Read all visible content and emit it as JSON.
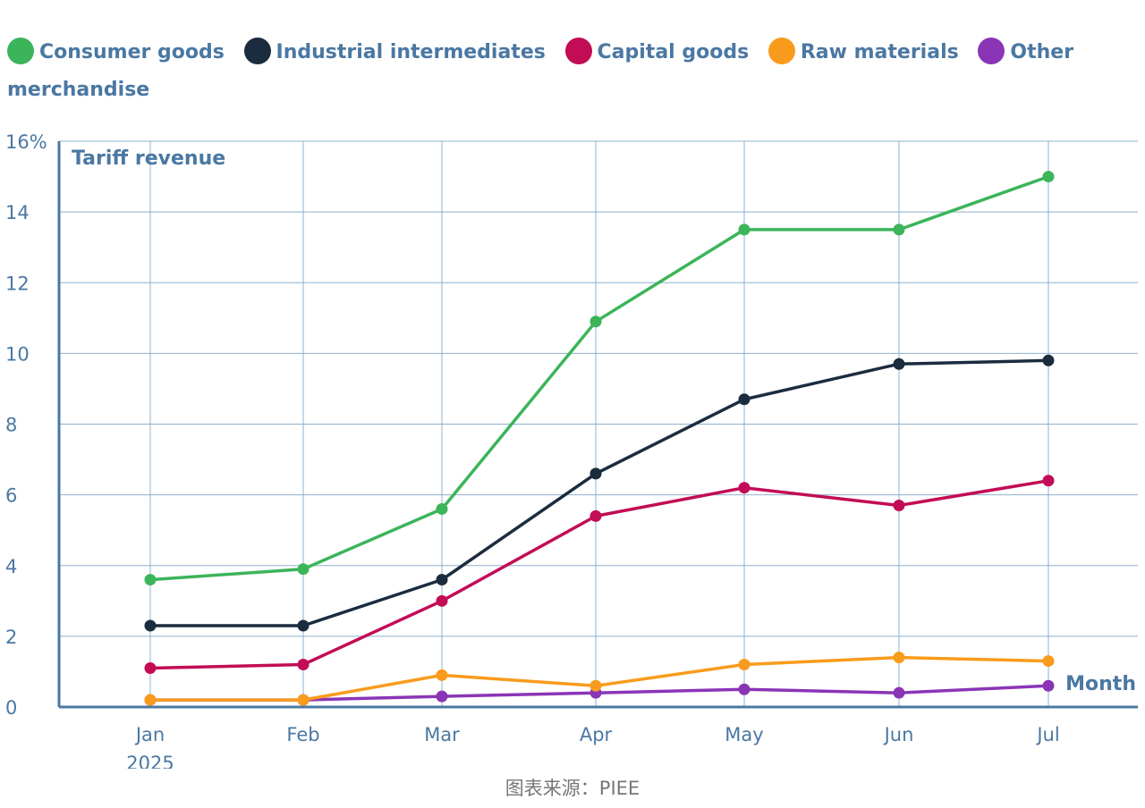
{
  "chart_data": {
    "type": "line",
    "ylabel": "Tariff revenue",
    "xlabel": "Month",
    "ylim": [
      0,
      16
    ],
    "yticks": [
      "0",
      "2",
      "4",
      "6",
      "8",
      "10",
      "12",
      "14",
      "16%"
    ],
    "ytick_values": [
      0,
      2,
      4,
      6,
      8,
      10,
      12,
      14,
      16
    ],
    "categories": [
      "Jan",
      "Feb",
      "Mar",
      "Apr",
      "May",
      "Jun",
      "Jul"
    ],
    "year_label": "2025",
    "grid": true,
    "legend_position": "top",
    "series": [
      {
        "name": "Consumer goods",
        "color": "#3cb55a",
        "values": [
          3.6,
          3.9,
          5.6,
          10.9,
          13.5,
          13.5,
          15.0
        ]
      },
      {
        "name": "Industrial intermediates",
        "color": "#1b2c3f",
        "values": [
          2.3,
          2.3,
          3.6,
          6.6,
          8.7,
          9.7,
          9.8
        ]
      },
      {
        "name": "Capital goods",
        "color": "#c30c56",
        "values": [
          1.1,
          1.2,
          3.0,
          5.4,
          6.2,
          5.7,
          6.4
        ]
      },
      {
        "name": "Raw materials",
        "color": "#f99b1c",
        "values": [
          0.2,
          0.2,
          0.9,
          0.6,
          1.2,
          1.4,
          1.3
        ]
      },
      {
        "name": "Other merchandise",
        "color": "#8a35b6",
        "values": [
          0.2,
          0.2,
          0.3,
          0.4,
          0.5,
          0.4,
          0.6
        ]
      }
    ]
  },
  "source": "图表来源：PIEE"
}
